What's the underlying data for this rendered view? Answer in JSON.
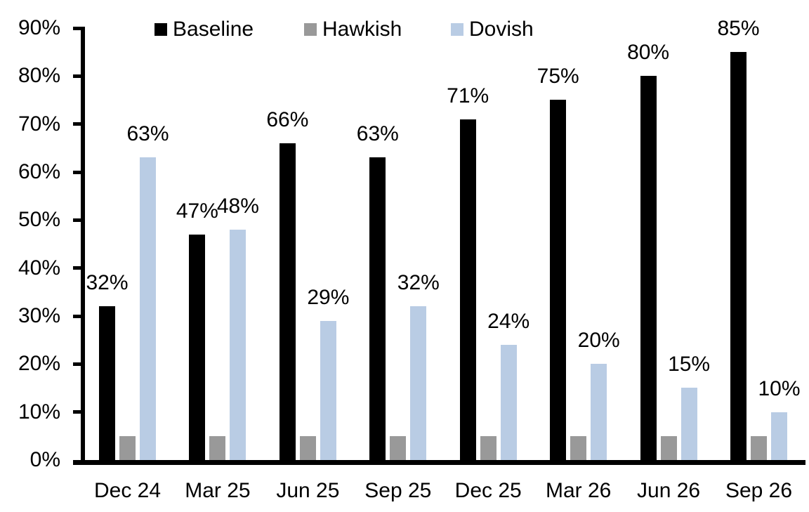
{
  "chart_data": {
    "type": "bar",
    "title": "",
    "xlabel": "",
    "ylabel": "",
    "categories": [
      "Dec 24",
      "Mar 25",
      "Jun 25",
      "Sep 25",
      "Dec 25",
      "Mar 26",
      "Jun 26",
      "Sep 26"
    ],
    "series": [
      {
        "name": "Baseline",
        "color": "#000000",
        "values": [
          32,
          47,
          66,
          63,
          71,
          75,
          80,
          85
        ],
        "labels": [
          "32%",
          "47%",
          "66%",
          "63%",
          "71%",
          "75%",
          "80%",
          "85%"
        ],
        "show_labels": true
      },
      {
        "name": "Hawkish",
        "color": "#999999",
        "values": [
          5,
          5,
          5,
          5,
          5,
          5,
          5,
          5
        ],
        "labels": [],
        "show_labels": false
      },
      {
        "name": "Dovish",
        "color": "#B9CCE4",
        "values": [
          63,
          48,
          29,
          32,
          24,
          20,
          15,
          10
        ],
        "labels": [
          "63%",
          "48%",
          "29%",
          "32%",
          "24%",
          "20%",
          "15%",
          "10%"
        ],
        "show_labels": true
      }
    ],
    "ylim": [
      0,
      90
    ],
    "ytick_step": 10,
    "ytick_labels": [
      "0%",
      "10%",
      "20%",
      "30%",
      "40%",
      "50%",
      "60%",
      "70%",
      "80%",
      "90%"
    ],
    "grid": false,
    "legend_position": "top",
    "axis_color": "#000000",
    "text_color": "#000000",
    "background_color": "#ffffff"
  }
}
